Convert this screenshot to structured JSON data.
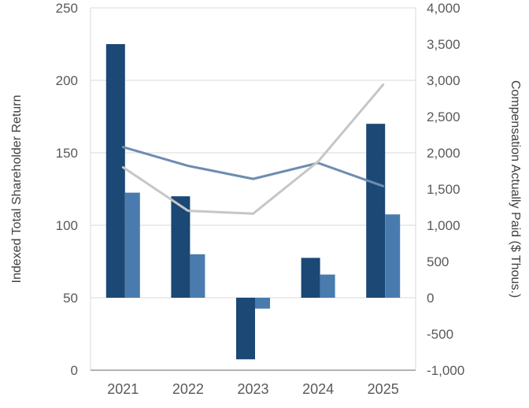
{
  "chart_data": {
    "type": "combo-bar-line",
    "title": "",
    "categories": [
      "2021",
      "2022",
      "2023",
      "2024",
      "2025"
    ],
    "bar_series": [
      {
        "name": "dark-navy-bars",
        "axis": "right",
        "color": "#1b4875",
        "values": [
          3500,
          1400,
          -850,
          550,
          2400
        ]
      },
      {
        "name": "medium-blue-bars",
        "axis": "right",
        "color": "#4a7bae",
        "values": [
          1450,
          600,
          -150,
          320,
          1150
        ]
      }
    ],
    "line_series": [
      {
        "name": "blue-line",
        "axis": "left",
        "color": "#6d8cb0",
        "values": [
          154,
          141,
          132,
          143,
          127
        ]
      },
      {
        "name": "gray-line",
        "axis": "left",
        "color": "#c6c6c6",
        "values": [
          140,
          110,
          108,
          144,
          197
        ]
      }
    ],
    "left_axis": {
      "label": "Indexed Total Shareholder Return",
      "min": 0,
      "max": 250,
      "step": 50,
      "ticks": [
        "0",
        "50",
        "100",
        "150",
        "200",
        "250"
      ]
    },
    "right_axis": {
      "label": "Compensation Actually Paid ($ Thous.)",
      "min": -1000,
      "max": 4000,
      "step": 500,
      "ticks": [
        "-1,000",
        "-500",
        "0",
        "500",
        "1,000",
        "1,500",
        "2,000",
        "2,500",
        "3,000",
        "3,500",
        "4,000"
      ]
    },
    "grid": true,
    "legend": "none",
    "colors": {
      "gridline": "#d9d9d9",
      "axis_line": "#9a9a9a",
      "plot_border": "#d9d9d9"
    }
  }
}
